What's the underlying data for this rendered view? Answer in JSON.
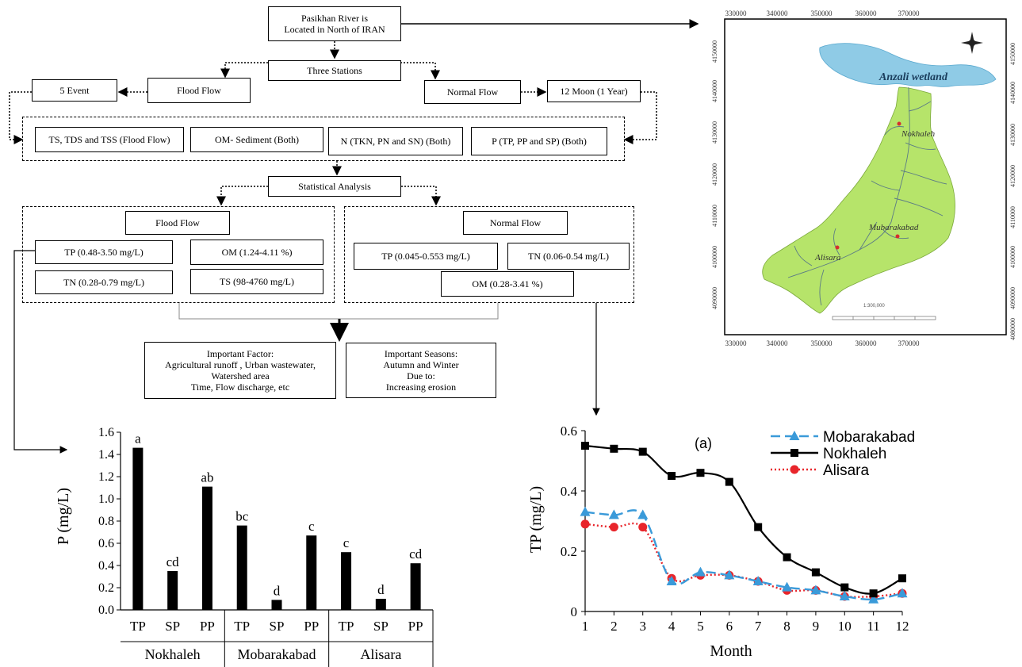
{
  "flowchart": {
    "river_box": [
      "Pasikhan River is",
      "Located in North of IRAN"
    ],
    "stations_box": "Three Stations",
    "flood_flow_box": "Flood Flow",
    "event_box": "5 Event",
    "normal_flow_box": "Normal Flow",
    "moon_box": "12 Moon (1 Year)",
    "parameters": {
      "ts_box": "TS, TDS and TSS (Flood Flow)",
      "om_box": "OM- Sediment (Both)",
      "n_box": "N (TKN, PN and SN) (Both)",
      "p_box": "P (TP, PP and SP) (Both)"
    },
    "statistical_box": "Statistical Analysis",
    "flood_results": {
      "title": "Flood Flow",
      "tp": "TP (0.48-3.50 mg/L)",
      "om": "OM (1.24-4.11 %)",
      "tn": "TN (0.28-0.79 mg/L)",
      "ts": "TS (98-4760 mg/L)"
    },
    "normal_results": {
      "title": "Normal Flow",
      "tp": "TP (0.045-0.553 mg/L)",
      "tn": "TN (0.06-0.54 mg/L)",
      "om": "OM (0.28-3.41 %)"
    },
    "factor_box": [
      "Important Factor:",
      "Agricultural runoff , Urban wastewater,",
      "Watershed area",
      "Time, Flow discharge, etc"
    ],
    "season_box": [
      "Important Seasons:",
      "Autumn and Winter",
      "Due to:",
      "Increasing erosion"
    ]
  },
  "map": {
    "top_ticks": [
      "330000",
      "340000",
      "350000",
      "360000",
      "370000"
    ],
    "bottom_ticks": [
      "330000",
      "340000",
      "350000",
      "360000",
      "370000"
    ],
    "left_ticks": [
      "4150000",
      "4140000",
      "4130000",
      "4120000",
      "4110000",
      "4100000",
      "4090000"
    ],
    "right_ticks": [
      "4150000",
      "4140000",
      "4130000",
      "4120000",
      "4110000",
      "4100000",
      "4090000",
      "4080000"
    ],
    "wetland_label": "Anzali wetland",
    "stations": [
      "Nokhaleh",
      "Mubarakabad",
      "Alisara"
    ],
    "scale_text": "1:300,000",
    "colors": {
      "wetland": "#8fcbe6",
      "watershed": "#b6e46a",
      "river": "#5b7b86",
      "station": "#d62f2f"
    }
  },
  "chart_data": [
    {
      "type": "bar",
      "ylabel": "P (mg/L)",
      "ylim": [
        0,
        1.6
      ],
      "yticks": [
        "0.0",
        "0.2",
        "0.4",
        "0.6",
        "0.8",
        "1.0",
        "1.2",
        "1.4",
        "1.6"
      ],
      "groups": [
        "Nokhaleh",
        "Mobarakabad",
        "Alisara"
      ],
      "categories": [
        "TP",
        "SP",
        "PP"
      ],
      "values": [
        [
          1.46,
          0.35,
          1.11
        ],
        [
          0.76,
          0.09,
          0.67
        ],
        [
          0.52,
          0.1,
          0.42
        ]
      ],
      "letters": [
        [
          "a",
          "cd",
          "ab"
        ],
        [
          "bc",
          "d",
          "c"
        ],
        [
          "c",
          "d",
          "cd"
        ]
      ],
      "bar_color": "#000000"
    },
    {
      "type": "line",
      "xlabel": "Month",
      "ylabel": "TP (mg/L)",
      "annotation": "(a)",
      "x": [
        1,
        2,
        3,
        4,
        5,
        6,
        7,
        8,
        9,
        10,
        11,
        12
      ],
      "xticks": [
        "1",
        "2",
        "3",
        "4",
        "5",
        "6",
        "7",
        "8",
        "9",
        "10",
        "11",
        "12"
      ],
      "ylim": [
        0,
        0.6
      ],
      "yticks": [
        "0",
        "0.2",
        "0.4",
        "0.6"
      ],
      "legend_position": "top-right",
      "series": [
        {
          "name": "Mobarakabad",
          "color": "#3a9ad9",
          "marker": "triangle",
          "values": [
            0.33,
            0.32,
            0.32,
            0.1,
            0.13,
            0.12,
            0.1,
            0.08,
            0.07,
            0.05,
            0.04,
            0.06
          ]
        },
        {
          "name": "Nokhaleh",
          "color": "#000000",
          "marker": "square",
          "values": [
            0.55,
            0.54,
            0.53,
            0.45,
            0.46,
            0.43,
            0.28,
            0.18,
            0.13,
            0.08,
            0.06,
            0.11
          ]
        },
        {
          "name": "Alisara",
          "color": "#e8252b",
          "marker": "circle",
          "values": [
            0.29,
            0.28,
            0.28,
            0.11,
            0.12,
            0.12,
            0.1,
            0.07,
            0.07,
            0.05,
            0.05,
            0.06
          ]
        }
      ]
    }
  ]
}
